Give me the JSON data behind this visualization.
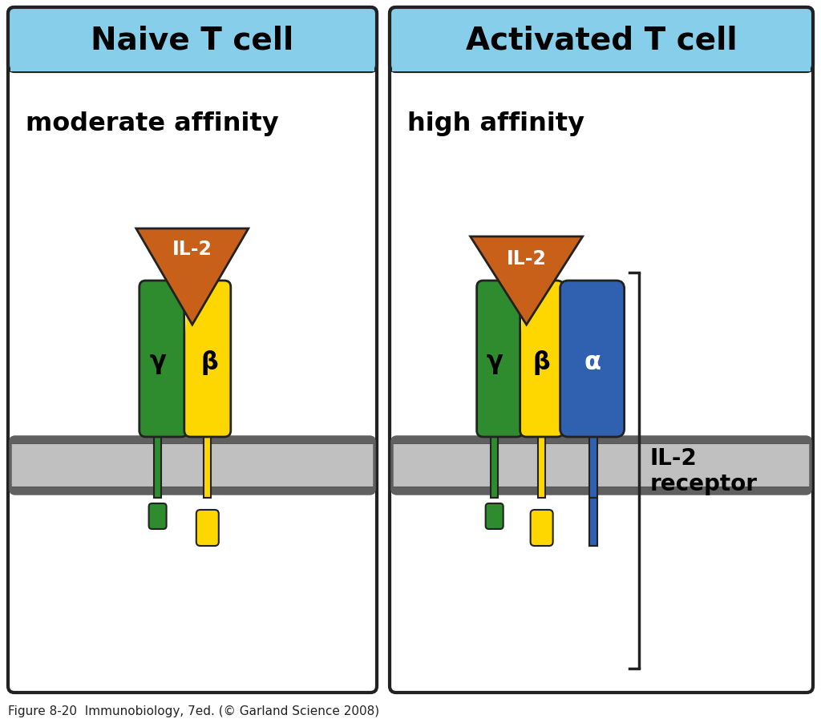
{
  "bg_color": "#ffffff",
  "header_color": "#87CEEB",
  "left_title": "Naive T cell",
  "right_title": "Activated T cell",
  "left_affinity": "moderate affinity",
  "right_affinity": "high affinity",
  "il2_label": "IL-2",
  "il2_color": "#C8601A",
  "green_color": "#2E8B2E",
  "yellow_color": "#FFD700",
  "blue_color": "#3060B0",
  "membrane_color": "#C0C0C0",
  "membrane_dark": "#606060",
  "gamma_label": "γ",
  "beta_label": "β",
  "alpha_label": "α",
  "il2_receptor_label": "IL-2\nreceptor",
  "caption": "Figure 8-20  Immunobiology, 7ed. (© Garland Science 2008)"
}
